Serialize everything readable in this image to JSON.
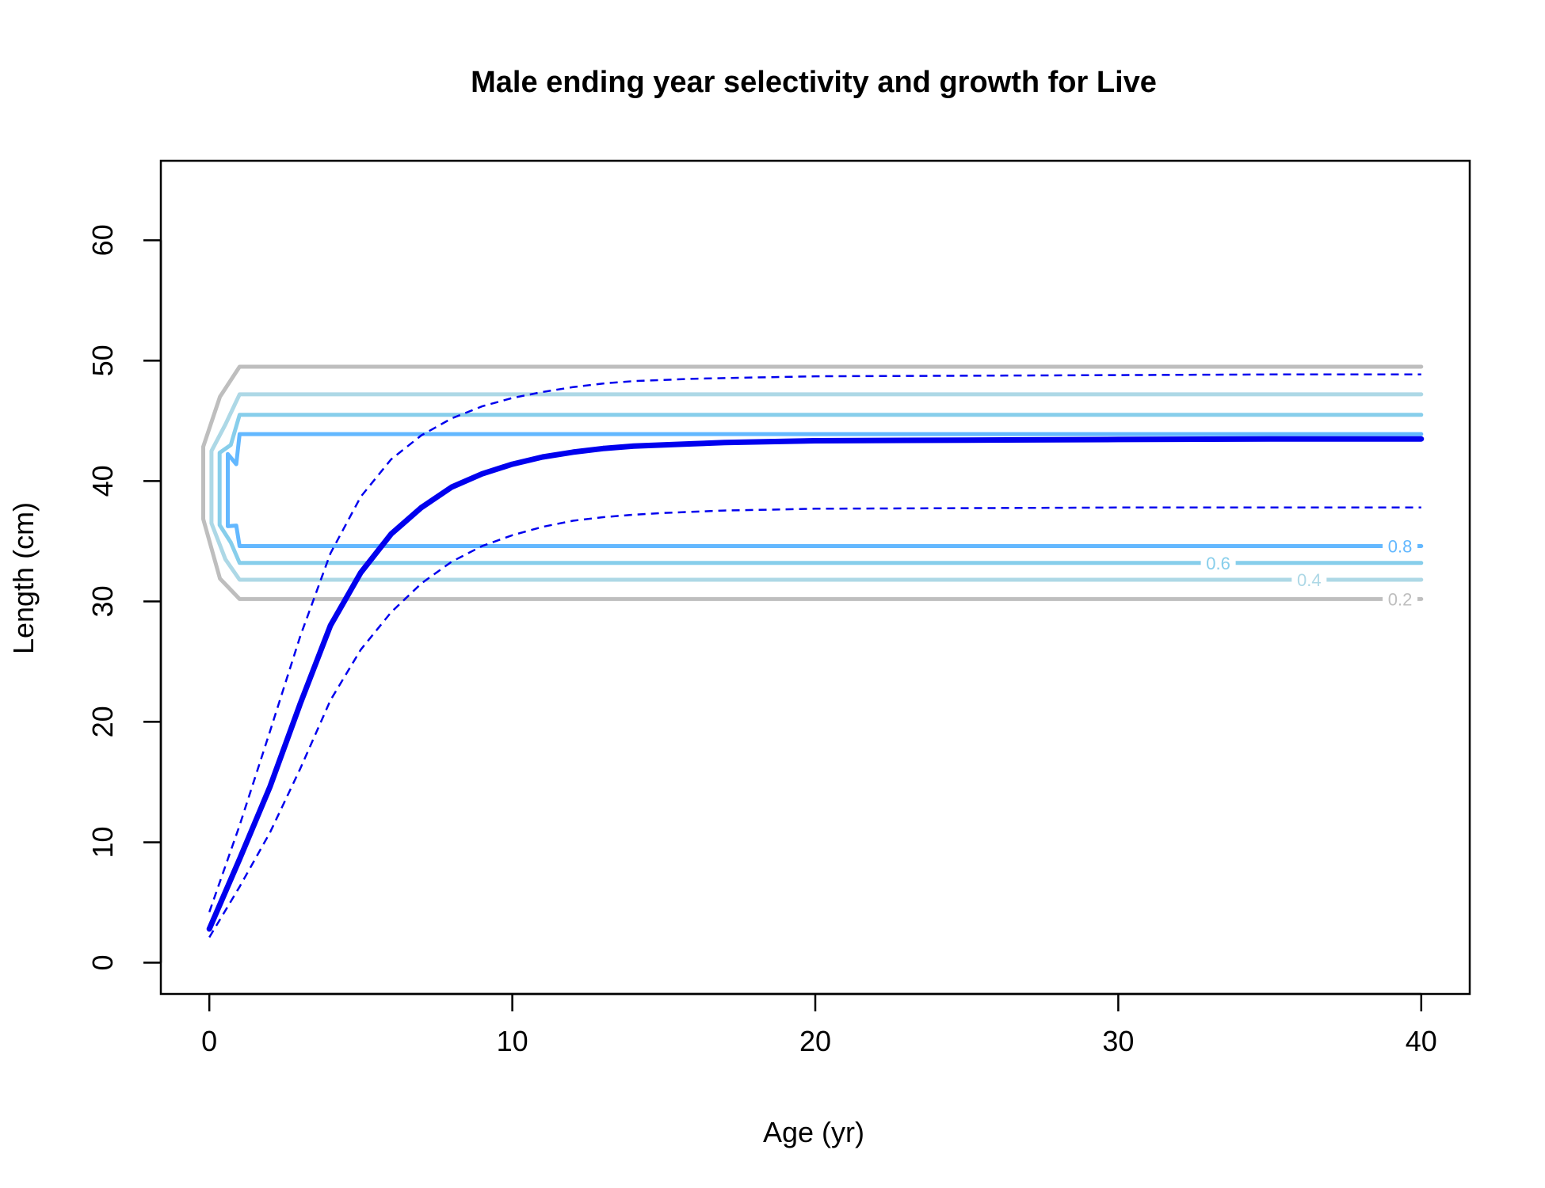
{
  "chart_data": {
    "type": "line",
    "title": "Male ending year selectivity and growth for Live",
    "xlabel": "Age (yr)",
    "ylabel": "Length (cm)",
    "xlim": [
      -1.6,
      41.6
    ],
    "ylim": [
      -2.6,
      66.6
    ],
    "xticks": [
      0,
      10,
      20,
      30,
      40
    ],
    "yticks": [
      0,
      10,
      20,
      30,
      40,
      50,
      60
    ],
    "grid": false,
    "growth": {
      "color": "#0000ee",
      "ages": [
        0,
        1,
        2,
        3,
        4,
        5,
        6,
        7,
        8,
        9,
        10,
        11,
        12,
        13,
        14,
        15,
        16,
        17,
        18,
        19,
        20,
        25,
        30,
        35,
        40
      ],
      "mean": [
        2.8,
        8.6,
        14.6,
        21.5,
        28.0,
        32.4,
        35.6,
        37.8,
        39.5,
        40.6,
        41.4,
        42.0,
        42.4,
        42.7,
        42.9,
        43.0,
        43.1,
        43.2,
        43.25,
        43.3,
        43.35,
        43.4,
        43.45,
        43.5,
        43.5
      ],
      "upper": [
        4.2,
        11.4,
        19.2,
        27.1,
        34.0,
        38.7,
        41.8,
        43.8,
        45.2,
        46.2,
        46.9,
        47.4,
        47.8,
        48.1,
        48.3,
        48.4,
        48.5,
        48.55,
        48.6,
        48.65,
        48.7,
        48.75,
        48.8,
        48.85,
        48.85
      ],
      "lower": [
        2.1,
        6.3,
        10.8,
        16.1,
        21.8,
        26.0,
        29.1,
        31.5,
        33.3,
        34.6,
        35.5,
        36.2,
        36.7,
        37.0,
        37.2,
        37.35,
        37.45,
        37.55,
        37.6,
        37.65,
        37.7,
        37.75,
        37.8,
        37.8,
        37.8
      ]
    },
    "contours": [
      {
        "level": "0.2",
        "color": "#bebebe",
        "upper": 49.5,
        "lower": 30.2
      },
      {
        "level": "0.4",
        "color": "#add8e6",
        "upper": 47.2,
        "lower": 31.8
      },
      {
        "level": "0.6",
        "color": "#87ceeb",
        "upper": 45.5,
        "lower": 33.2
      },
      {
        "level": "0.8",
        "color": "#63b8ff",
        "upper": 43.9,
        "lower": 34.6
      }
    ]
  }
}
